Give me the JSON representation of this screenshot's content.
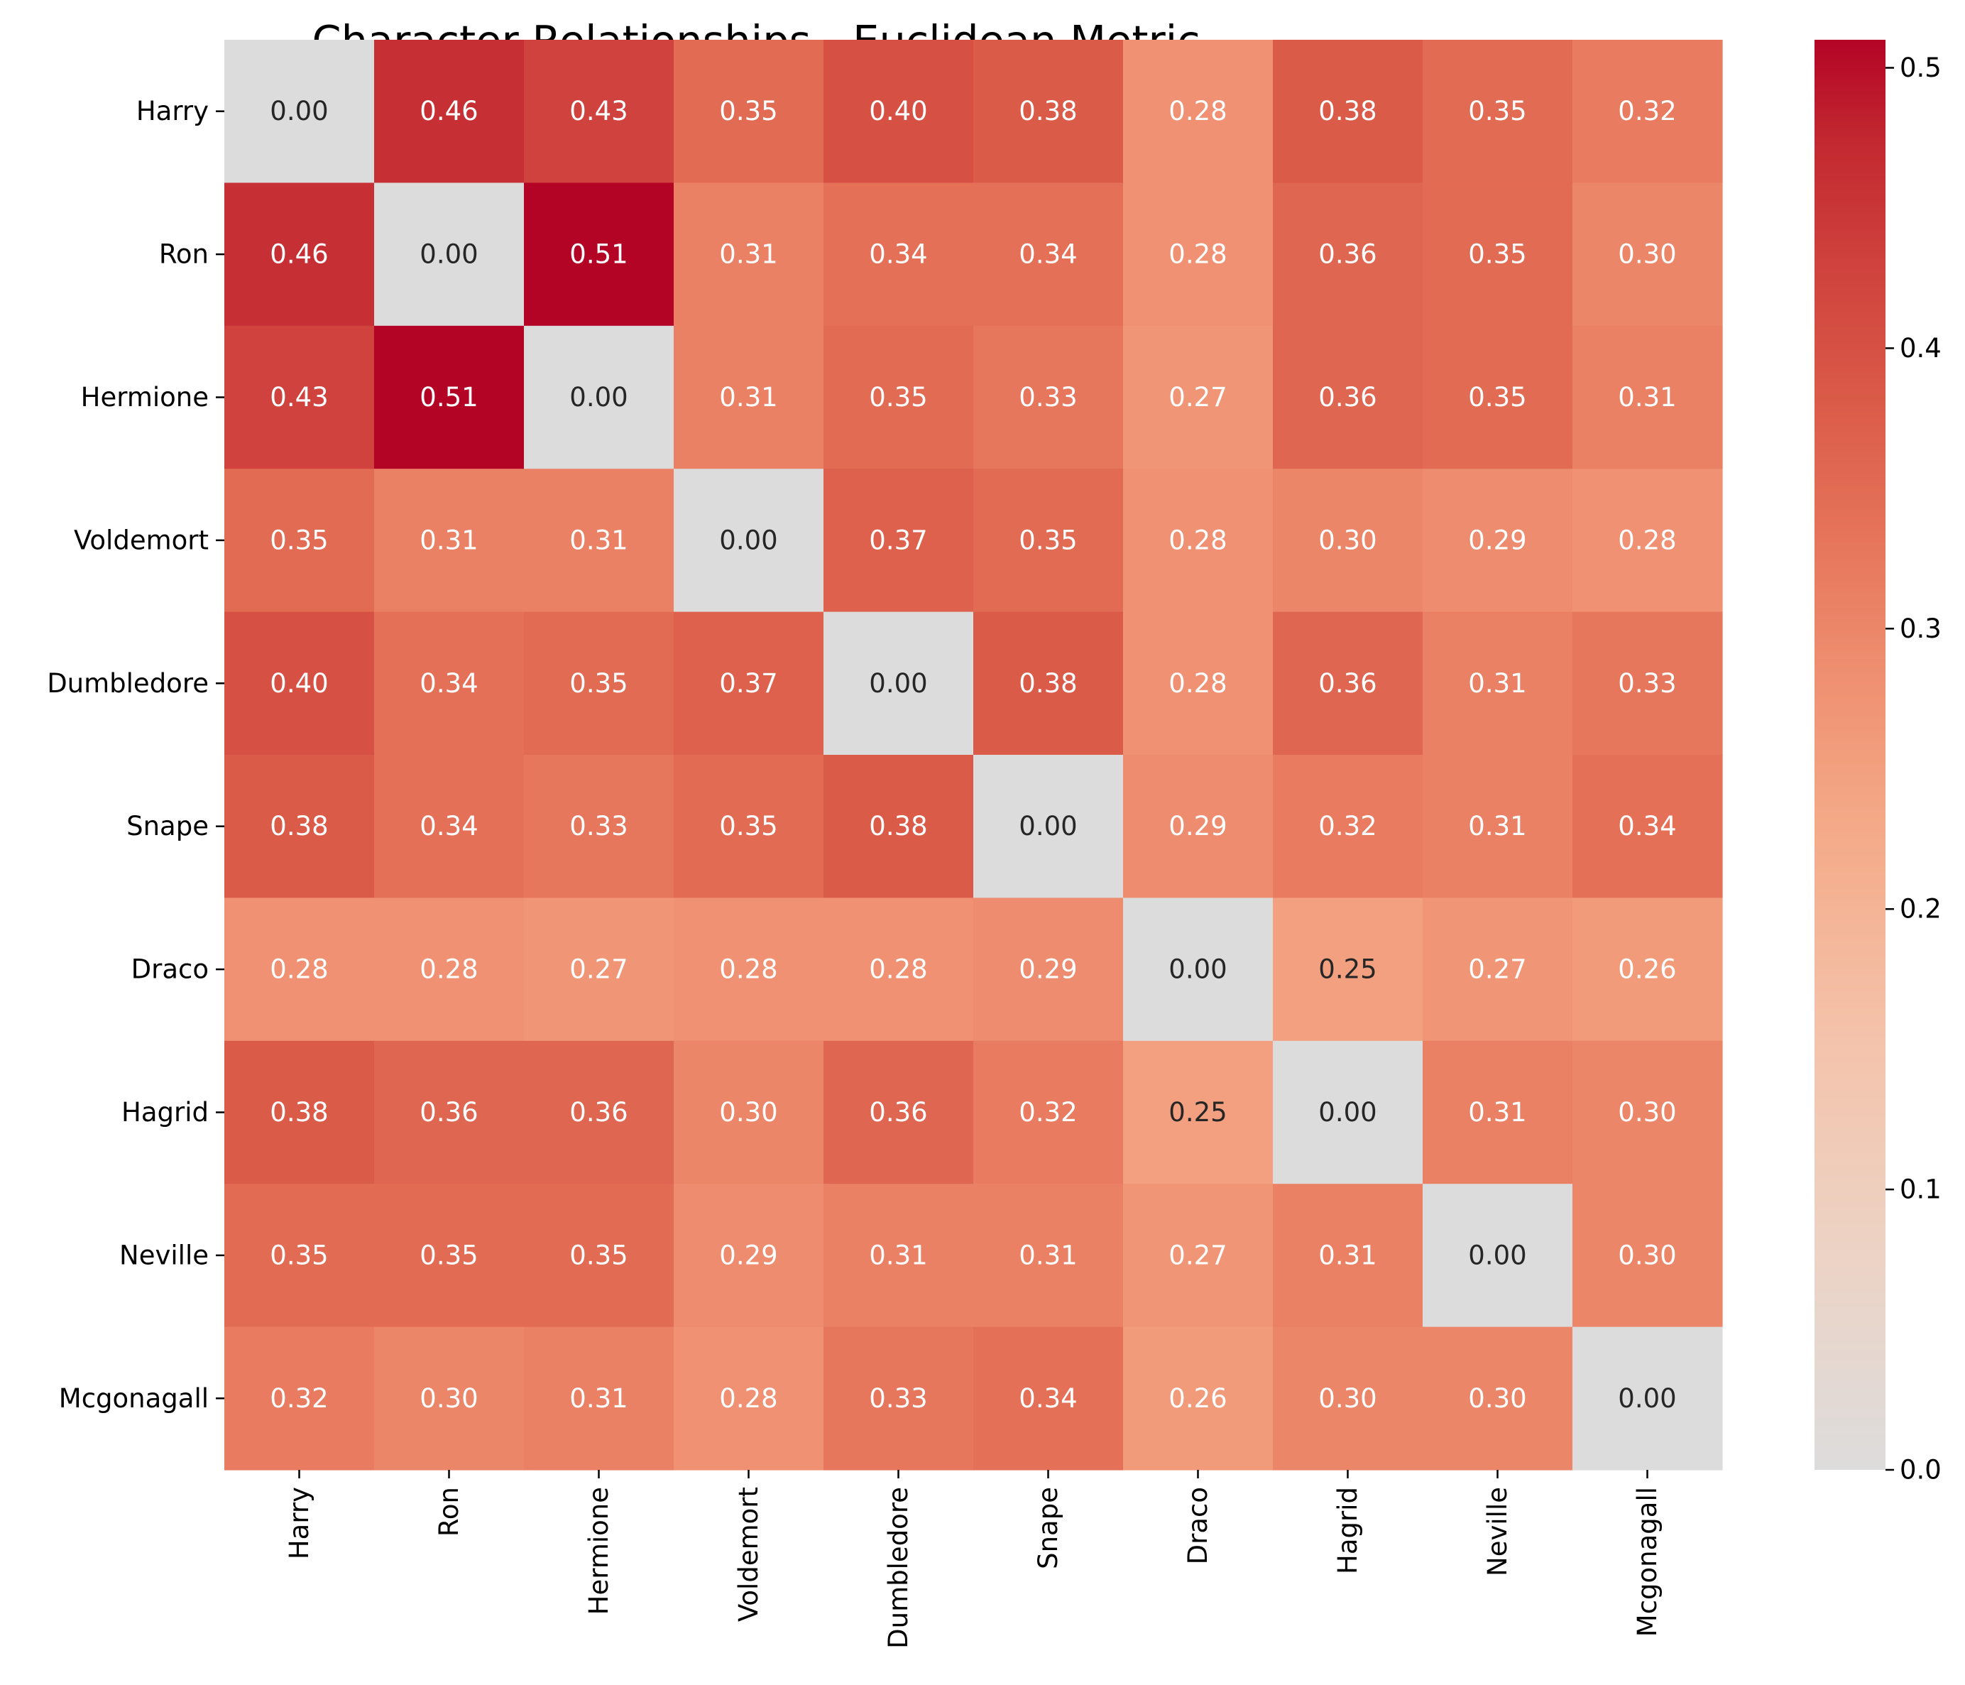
{
  "chart_data": {
    "type": "heatmap",
    "title": "Character Relationships - Euclidean Metric",
    "xlabel": "",
    "ylabel": "",
    "rows": [
      "Harry",
      "Ron",
      "Hermione",
      "Voldemort",
      "Dumbledore",
      "Snape",
      "Draco",
      "Hagrid",
      "Neville",
      "Mcgonagall"
    ],
    "columns": [
      "Harry",
      "Ron",
      "Hermione",
      "Voldemort",
      "Dumbledore",
      "Snape",
      "Draco",
      "Hagrid",
      "Neville",
      "Mcgonagall"
    ],
    "values": [
      [
        0.0,
        0.46,
        0.43,
        0.35,
        0.4,
        0.38,
        0.28,
        0.38,
        0.35,
        0.32
      ],
      [
        0.46,
        0.0,
        0.51,
        0.31,
        0.34,
        0.34,
        0.28,
        0.36,
        0.35,
        0.3
      ],
      [
        0.43,
        0.51,
        0.0,
        0.31,
        0.35,
        0.33,
        0.27,
        0.36,
        0.35,
        0.31
      ],
      [
        0.35,
        0.31,
        0.31,
        0.0,
        0.37,
        0.35,
        0.28,
        0.3,
        0.29,
        0.28
      ],
      [
        0.4,
        0.34,
        0.35,
        0.37,
        0.0,
        0.38,
        0.28,
        0.36,
        0.31,
        0.33
      ],
      [
        0.38,
        0.34,
        0.33,
        0.35,
        0.38,
        0.0,
        0.29,
        0.32,
        0.31,
        0.34
      ],
      [
        0.28,
        0.28,
        0.27,
        0.28,
        0.28,
        0.29,
        0.0,
        0.25,
        0.27,
        0.26
      ],
      [
        0.38,
        0.36,
        0.36,
        0.3,
        0.36,
        0.32,
        0.25,
        0.0,
        0.31,
        0.3
      ],
      [
        0.35,
        0.35,
        0.35,
        0.29,
        0.31,
        0.31,
        0.27,
        0.31,
        0.0,
        0.3
      ],
      [
        0.32,
        0.3,
        0.31,
        0.28,
        0.33,
        0.34,
        0.26,
        0.3,
        0.3,
        0.0
      ]
    ],
    "colormap": "coolwarm (upper half)",
    "colorbar": {
      "range": [
        0.0,
        0.51
      ],
      "ticks": [
        0.0,
        0.1,
        0.2,
        0.3,
        0.4,
        0.5
      ],
      "tick_labels": [
        "0.0",
        "0.1",
        "0.2",
        "0.3",
        "0.4",
        "0.5"
      ]
    },
    "annotations": "cell values, 2 decimals",
    "grid": false,
    "legend": "colorbar at right"
  }
}
